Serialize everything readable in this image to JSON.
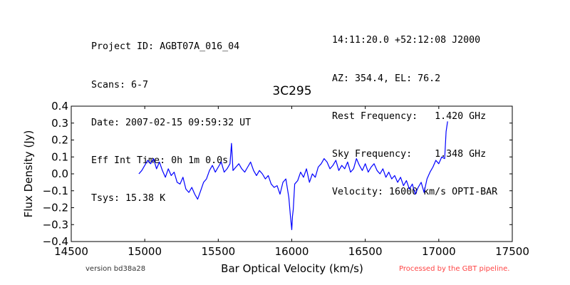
{
  "header": {
    "left_lines": [
      "Project ID: AGBT07A_016_04",
      "Scans: 6-7",
      "Date: 2007-02-15 09:59:32 UT",
      "Eff Int Time: 0h 1m 0.0s",
      "Tsys: 15.38 K"
    ],
    "right_lines": [
      "14:11:20.0 +52:12:08 J2000",
      "AZ: 354.4, EL: 76.2",
      "Rest Frequency:   1.420 GHz",
      "Sky Frequency:    1.348 GHz",
      "Velocity: 16000 km/s OPTI-BAR"
    ]
  },
  "footer": {
    "version": "version bd38a28",
    "pipeline": "Processed by the GBT pipeline."
  },
  "colors": {
    "series": "#0000ff",
    "pipeline_text": "#ff4444",
    "version_text": "#333333"
  },
  "chart_data": {
    "type": "line",
    "title": "3C295",
    "xlabel": "Bar Optical Velocity (km/s)",
    "ylabel": "Flux Density (Jy)",
    "xlim": [
      14500,
      17500
    ],
    "ylim": [
      -0.4,
      0.4
    ],
    "xticks": [
      14500,
      15000,
      15500,
      16000,
      16500,
      17000,
      17500
    ],
    "yticks": [
      -0.4,
      -0.3,
      -0.2,
      -0.1,
      0.0,
      0.1,
      0.2,
      0.3,
      0.4
    ],
    "xtick_labels": [
      "14500",
      "15000",
      "15500",
      "16000",
      "16500",
      "17000",
      "17500"
    ],
    "ytick_labels": [
      "−0.4",
      "−0.3",
      "−0.2",
      "−0.1",
      "0.0",
      "0.1",
      "0.2",
      "0.3",
      "0.4"
    ],
    "grid": false,
    "series": [
      {
        "x": [
          14960,
          14980,
          15000,
          15020,
          15040,
          15060,
          15080,
          15100,
          15120,
          15140,
          15160,
          15180,
          15200,
          15220,
          15240,
          15260,
          15280,
          15300,
          15320,
          15340,
          15360,
          15380,
          15400,
          15420,
          15440,
          15460,
          15480,
          15500,
          15520,
          15540,
          15560,
          15580,
          15590,
          15600,
          15620,
          15640,
          15660,
          15680,
          15700,
          15720,
          15740,
          15760,
          15780,
          15800,
          15820,
          15840,
          15860,
          15880,
          15900,
          15920,
          15940,
          15960,
          15980,
          15990,
          16000,
          16005,
          16010,
          16020,
          16040,
          16060,
          16080,
          16100,
          16120,
          16140,
          16160,
          16180,
          16200,
          16220,
          16240,
          16260,
          16280,
          16300,
          16320,
          16340,
          16360,
          16380,
          16400,
          16420,
          16440,
          16460,
          16480,
          16500,
          16520,
          16540,
          16560,
          16580,
          16600,
          16620,
          16640,
          16660,
          16680,
          16700,
          16720,
          16740,
          16760,
          16780,
          16800,
          16820,
          16840,
          16860,
          16880,
          16900,
          16920,
          16940,
          16960,
          16980,
          17000,
          17020,
          17040,
          17050,
          17060
        ],
        "y": [
          0.0,
          0.02,
          0.05,
          0.08,
          0.06,
          0.09,
          0.03,
          0.07,
          0.02,
          -0.02,
          0.03,
          -0.01,
          0.01,
          -0.05,
          -0.06,
          -0.02,
          -0.09,
          -0.11,
          -0.08,
          -0.12,
          -0.15,
          -0.1,
          -0.05,
          -0.03,
          0.02,
          0.05,
          0.01,
          0.04,
          0.07,
          0.01,
          0.03,
          0.06,
          0.18,
          0.02,
          0.04,
          0.06,
          0.03,
          0.01,
          0.04,
          0.07,
          0.02,
          -0.01,
          0.02,
          0.0,
          -0.03,
          -0.01,
          -0.06,
          -0.08,
          -0.07,
          -0.12,
          -0.05,
          -0.03,
          -0.14,
          -0.24,
          -0.33,
          -0.25,
          -0.21,
          -0.06,
          -0.04,
          0.01,
          -0.02,
          0.03,
          -0.05,
          0.0,
          -0.02,
          0.04,
          0.06,
          0.09,
          0.07,
          0.03,
          0.05,
          0.08,
          0.02,
          0.05,
          0.03,
          0.07,
          0.01,
          0.03,
          0.09,
          0.05,
          0.02,
          0.06,
          0.01,
          0.04,
          0.06,
          0.02,
          0.0,
          0.03,
          -0.02,
          0.01,
          -0.03,
          -0.01,
          -0.05,
          -0.02,
          -0.07,
          -0.04,
          -0.09,
          -0.06,
          -0.12,
          -0.08,
          -0.05,
          -0.11,
          -0.03,
          0.01,
          0.04,
          0.08,
          0.06,
          0.1,
          0.09,
          0.25,
          0.31
        ]
      }
    ]
  }
}
